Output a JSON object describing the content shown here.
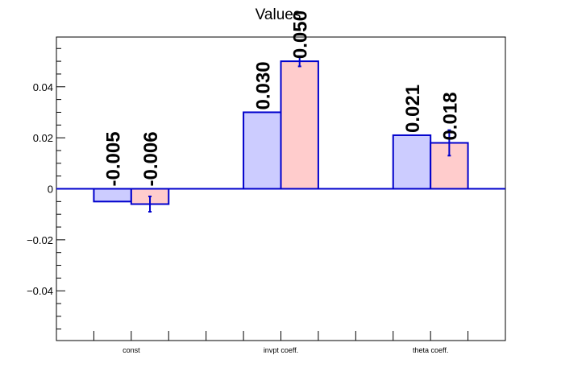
{
  "chart_data": {
    "type": "bar",
    "title": "Values",
    "xlabel": "",
    "ylabel": "",
    "categories": [
      "const",
      "invpt coeff.",
      "theta coeff."
    ],
    "series": [
      {
        "values": [
          -0.005,
          0.03,
          0.021
        ],
        "labels": [
          "-0.005",
          "0.030",
          "0.021"
        ],
        "errors": [
          0,
          0,
          0
        ],
        "fill": "#ccccff",
        "stroke": "#0000cc"
      },
      {
        "values": [
          -0.006,
          0.05,
          0.018
        ],
        "labels": [
          "-0.006",
          "0.050",
          "0.018"
        ],
        "errors": [
          0.003,
          0.002,
          0.005
        ],
        "fill": "#ffcccc",
        "stroke": "#0000cc"
      }
    ],
    "ylim": [
      -0.0595,
      0.0595
    ],
    "yticks": [
      -0.04,
      -0.02,
      0,
      0.02,
      0.04
    ],
    "ytick_labels": [
      "−0.04",
      "−0.02",
      "0",
      "0.02",
      "0.04"
    ],
    "grid": false,
    "legend": "none"
  }
}
